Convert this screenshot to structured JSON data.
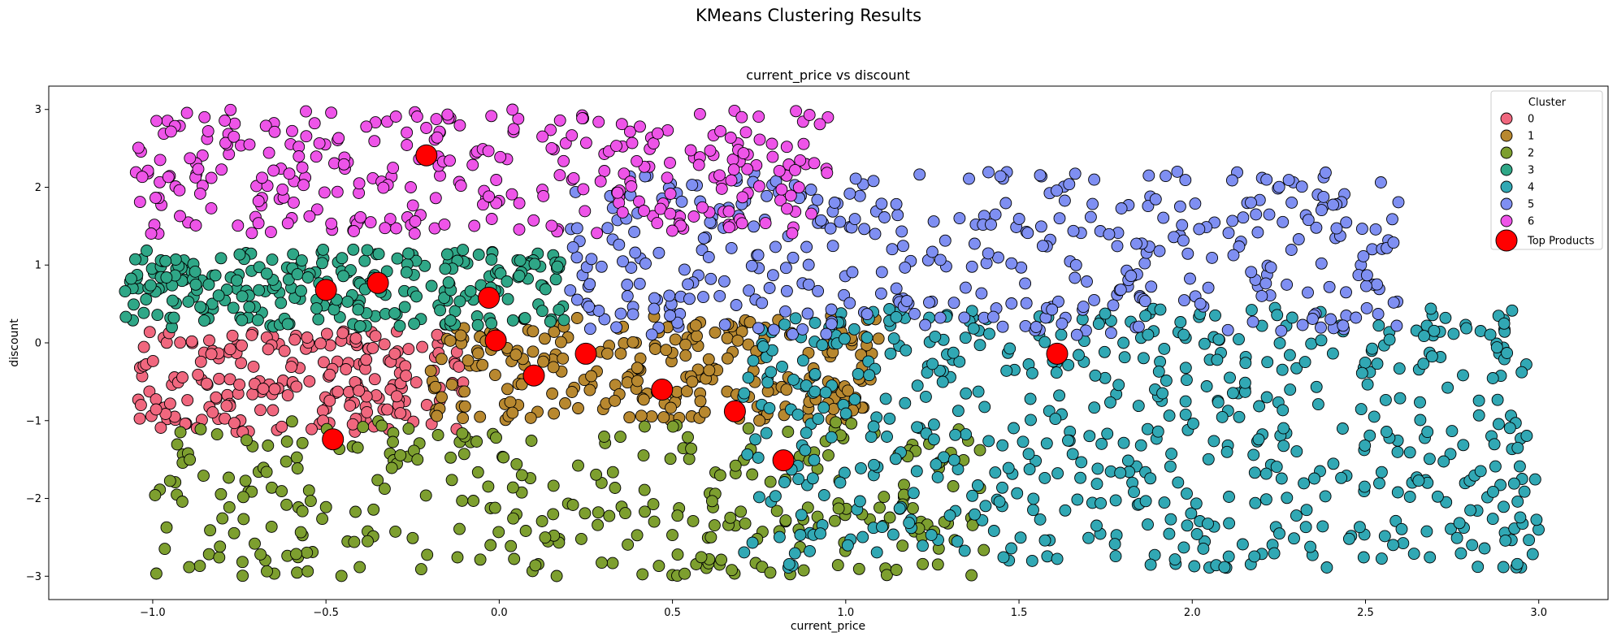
{
  "chart_data": {
    "type": "scatter",
    "suptitle": "KMeans Clustering Results",
    "title": "current_price vs discount",
    "xlabel": "current_price",
    "ylabel": "discount",
    "xlim": [
      -1.3,
      3.2
    ],
    "ylim": [
      -3.3,
      3.3
    ],
    "x_ticks": [
      "−1.0",
      "−0.5",
      "0.0",
      "0.5",
      "1.0",
      "1.5",
      "2.0",
      "2.5",
      "3.0"
    ],
    "y_ticks": [
      "−3",
      "−2",
      "−1",
      "0",
      "1",
      "2",
      "3"
    ],
    "grid": false,
    "legend": {
      "title": "Cluster",
      "placement": "top-right",
      "entries": [
        {
          "label": "0",
          "color": "#f0677e"
        },
        {
          "label": "1",
          "color": "#b8882f"
        },
        {
          "label": "2",
          "color": "#7d9f2f"
        },
        {
          "label": "3",
          "color": "#2fa787"
        },
        {
          "label": "4",
          "color": "#31a8b4"
        },
        {
          "label": "5",
          "color": "#7f8ff2"
        },
        {
          "label": "6",
          "color": "#ee54e8"
        },
        {
          "label": "Top Products",
          "color": "#ff0000"
        }
      ]
    },
    "clusters": [
      {
        "name": "0",
        "color": "#f0677e",
        "x_range": [
          -1.05,
          -0.1
        ],
        "y_range": [
          -1.15,
          0.15
        ],
        "points": 220
      },
      {
        "name": "1",
        "color": "#b8882f",
        "x_range": [
          -0.2,
          1.1
        ],
        "y_range": [
          -1.0,
          0.35
        ],
        "points": 260
      },
      {
        "name": "2",
        "color": "#7d9f2f",
        "x_range": [
          -1.0,
          1.4
        ],
        "y_range": [
          -3.0,
          -1.0
        ],
        "points": 320
      },
      {
        "name": "3",
        "color": "#2fa787",
        "x_range": [
          -1.08,
          0.2
        ],
        "y_range": [
          0.2,
          1.2
        ],
        "points": 260
      },
      {
        "name": "4",
        "color": "#31a8b4",
        "x_range": [
          0.7,
          3.0
        ],
        "y_range": [
          -2.9,
          0.45
        ],
        "points": 600
      },
      {
        "name": "5",
        "color": "#7f8ff2",
        "x_range": [
          0.2,
          2.6
        ],
        "y_range": [
          0.1,
          2.2
        ],
        "points": 420
      },
      {
        "name": "6",
        "color": "#ee54e8",
        "x_range": [
          -1.05,
          0.95
        ],
        "y_range": [
          1.4,
          3.0
        ],
        "points": 320
      }
    ],
    "top_products": {
      "name": "Top Products",
      "color": "#ff0000",
      "points": [
        [
          -0.21,
          2.41
        ],
        [
          -0.5,
          0.68
        ],
        [
          -0.35,
          0.77
        ],
        [
          -0.03,
          0.58
        ],
        [
          -0.01,
          0.03
        ],
        [
          0.25,
          -0.14
        ],
        [
          0.1,
          -0.42
        ],
        [
          0.47,
          -0.6
        ],
        [
          0.68,
          -0.88
        ],
        [
          -0.48,
          -1.24
        ],
        [
          0.82,
          -1.51
        ],
        [
          1.61,
          -0.14
        ]
      ]
    }
  }
}
